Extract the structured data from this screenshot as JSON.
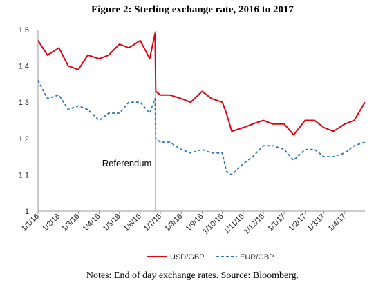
{
  "title": "Figure 2: Sterling exchange rate, 2016 to 2017",
  "note": "Notes: End of day exchange rates. Source: Bloomberg.",
  "chart_data": {
    "type": "line",
    "title": "Figure 2: Sterling exchange rate, 2016 to 2017",
    "xlabel": "",
    "ylabel": "",
    "ylim": [
      1.0,
      1.5
    ],
    "yticks": [
      "1",
      "1.1",
      "1.2",
      "1.3",
      "1.4",
      "1.5"
    ],
    "xticks": [
      "1/1/16",
      "1/2/16",
      "1/3/16",
      "1/4/16",
      "1/5/16",
      "1/6/16",
      "1/7/16",
      "1/8/16",
      "1/9/16",
      "1/10/16",
      "1/11/16",
      "1/12/16",
      "1/1/17",
      "1/2/17",
      "1/3/17",
      "1/4/17"
    ],
    "grid": false,
    "legend_position": "bottom",
    "annotation": {
      "label": "Referendum",
      "x": "23/6/16"
    },
    "series": [
      {
        "name": "USD/GBP",
        "color": "#e3000f",
        "style": "solid",
        "x": [
          "1/1/16",
          "15/1/16",
          "1/2/16",
          "15/2/16",
          "1/3/16",
          "15/3/16",
          "1/4/16",
          "15/4/16",
          "1/5/16",
          "15/5/16",
          "1/6/16",
          "15/6/16",
          "23/6/16",
          "24/6/16",
          "1/7/16",
          "15/7/16",
          "1/8/16",
          "15/8/16",
          "1/9/16",
          "15/9/16",
          "1/10/16",
          "7/10/16",
          "15/10/16",
          "1/11/16",
          "15/11/16",
          "1/12/16",
          "15/12/16",
          "1/1/17",
          "15/1/17",
          "1/2/17",
          "15/2/17",
          "1/3/17",
          "15/3/17",
          "1/4/17",
          "15/4/17",
          "1/5/17"
        ],
        "values": [
          1.47,
          1.43,
          1.45,
          1.4,
          1.39,
          1.43,
          1.42,
          1.43,
          1.46,
          1.45,
          1.47,
          1.42,
          1.49,
          1.33,
          1.32,
          1.32,
          1.31,
          1.3,
          1.33,
          1.31,
          1.3,
          1.27,
          1.22,
          1.23,
          1.24,
          1.25,
          1.24,
          1.24,
          1.21,
          1.25,
          1.25,
          1.23,
          1.22,
          1.24,
          1.25,
          1.3
        ]
      },
      {
        "name": "EUR/GBP",
        "color": "#2e75b6",
        "style": "dashed",
        "x": [
          "1/1/16",
          "15/1/16",
          "1/2/16",
          "15/2/16",
          "1/3/16",
          "15/3/16",
          "1/4/16",
          "15/4/16",
          "1/5/16",
          "15/5/16",
          "1/6/16",
          "15/6/16",
          "23/6/16",
          "24/6/16",
          "1/7/16",
          "15/7/16",
          "1/8/16",
          "15/8/16",
          "1/9/16",
          "15/9/16",
          "1/10/16",
          "7/10/16",
          "15/10/16",
          "1/11/16",
          "15/11/16",
          "1/12/16",
          "15/12/16",
          "1/1/17",
          "15/1/17",
          "1/2/17",
          "15/2/17",
          "1/3/17",
          "15/3/17",
          "1/4/17",
          "15/4/17",
          "1/5/17"
        ],
        "values": [
          1.36,
          1.31,
          1.32,
          1.28,
          1.29,
          1.28,
          1.25,
          1.27,
          1.27,
          1.3,
          1.3,
          1.27,
          1.31,
          1.2,
          1.19,
          1.19,
          1.17,
          1.16,
          1.17,
          1.16,
          1.16,
          1.11,
          1.1,
          1.13,
          1.15,
          1.18,
          1.18,
          1.17,
          1.14,
          1.17,
          1.17,
          1.15,
          1.15,
          1.16,
          1.18,
          1.19
        ]
      }
    ]
  }
}
